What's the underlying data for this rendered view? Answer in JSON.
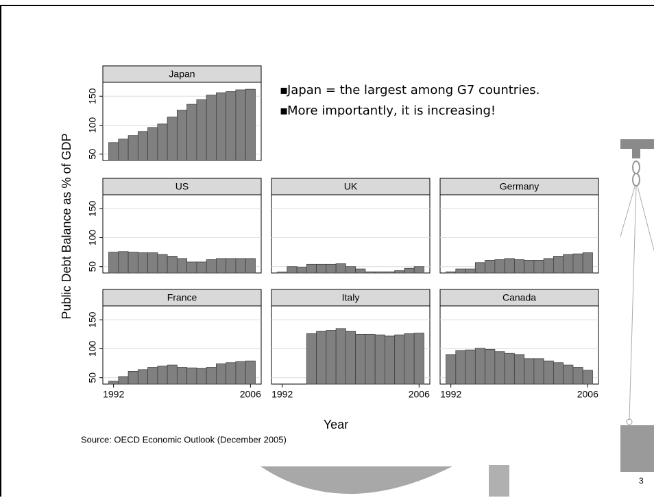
{
  "slide": {
    "bullets": [
      "Japan = the largest among G7 countries.",
      "More importantly, it is increasing!"
    ],
    "ylabel": "Public Debt Balance as % of GDP",
    "xlabel": "Year",
    "source": "Source: OECD Economic Outlook (December 2005)",
    "page_number": "3"
  },
  "chart_data": [
    {
      "type": "bar",
      "title": "Japan",
      "color": "#808080",
      "x": [
        1992,
        1993,
        1994,
        1995,
        1996,
        1997,
        1998,
        1999,
        2000,
        2001,
        2002,
        2003,
        2004,
        2005,
        2006
      ],
      "values": [
        70,
        76,
        82,
        89,
        96,
        102,
        114,
        126,
        136,
        144,
        152,
        156,
        158,
        161,
        162
      ],
      "xlim": [
        1990.9,
        2007.1
      ],
      "ylim": [
        39,
        174
      ],
      "yticks": [
        50,
        100,
        150
      ],
      "grid": true
    },
    {
      "type": "bar",
      "title": "US",
      "color": "#808080",
      "x": [
        1992,
        1993,
        1994,
        1995,
        1996,
        1997,
        1998,
        1999,
        2000,
        2001,
        2002,
        2003,
        2004,
        2005,
        2006
      ],
      "values": [
        75,
        76,
        75,
        74,
        74,
        71,
        68,
        64,
        58,
        58,
        62,
        64,
        64,
        64,
        64
      ],
      "xlim": [
        1990.9,
        2007.1
      ],
      "ylim": [
        39,
        174
      ],
      "yticks": [
        50,
        100,
        150
      ],
      "grid": true
    },
    {
      "type": "bar",
      "title": "UK",
      "color": "#808080",
      "x": [
        1992,
        1993,
        1994,
        1995,
        1996,
        1997,
        1998,
        1999,
        2000,
        2001,
        2002,
        2003,
        2004,
        2005,
        2006
      ],
      "values": [
        40.6,
        50,
        49,
        54,
        54,
        54,
        55,
        50,
        46,
        41,
        41,
        41,
        43,
        47,
        50
      ],
      "xlim": [
        1990.9,
        2007.1
      ],
      "ylim": [
        39,
        174
      ],
      "yticks": [
        50,
        100,
        150
      ],
      "grid": true
    },
    {
      "type": "bar",
      "title": "Germany",
      "color": "#808080",
      "x": [
        1992,
        1993,
        1994,
        1995,
        1996,
        1997,
        1998,
        1999,
        2000,
        2001,
        2002,
        2003,
        2004,
        2005,
        2006
      ],
      "values": [
        41,
        46,
        46,
        57,
        61,
        62,
        64,
        62,
        61,
        61,
        64,
        68,
        71,
        72,
        74
      ],
      "xlim": [
        1990.9,
        2007.1
      ],
      "ylim": [
        39,
        174
      ],
      "yticks": [
        50,
        100,
        150
      ],
      "grid": true
    },
    {
      "type": "bar",
      "title": "France",
      "color": "#808080",
      "x": [
        1992,
        1993,
        1994,
        1995,
        1996,
        1997,
        1998,
        1999,
        2000,
        2001,
        2002,
        2003,
        2004,
        2005,
        2006
      ],
      "values": [
        44,
        52,
        61,
        64,
        68,
        70,
        72,
        68,
        67,
        66,
        68,
        74,
        76,
        78,
        79
      ],
      "xlim": [
        1990.9,
        2007.1
      ],
      "ylim": [
        39,
        174
      ],
      "yticks": [
        50,
        100,
        150
      ],
      "xticks": [
        1992,
        2006
      ],
      "grid": true
    },
    {
      "type": "bar",
      "title": "Italy",
      "color": "#808080",
      "x": [
        1992,
        1993,
        1994,
        1995,
        1996,
        1997,
        1998,
        1999,
        2000,
        2001,
        2002,
        2003,
        2004,
        2005,
        2006
      ],
      "values": [
        null,
        null,
        null,
        126,
        130,
        132,
        135,
        130,
        125,
        125,
        124,
        122,
        124,
        126,
        127
      ],
      "xlim": [
        1990.9,
        2007.1
      ],
      "ylim": [
        39,
        174
      ],
      "yticks": [
        50,
        100,
        150
      ],
      "xticks": [
        1992,
        2006
      ],
      "grid": true
    },
    {
      "type": "bar",
      "title": "Canada",
      "color": "#808080",
      "x": [
        1992,
        1993,
        1994,
        1995,
        1996,
        1997,
        1998,
        1999,
        2000,
        2001,
        2002,
        2003,
        2004,
        2005,
        2006
      ],
      "values": [
        90,
        97,
        98,
        101,
        99,
        95,
        92,
        90,
        83,
        83,
        79,
        76,
        72,
        68,
        63
      ],
      "xlim": [
        1990.9,
        2007.1
      ],
      "ylim": [
        39,
        174
      ],
      "yticks": [
        50,
        100,
        150
      ],
      "xticks": [
        1992,
        2006
      ],
      "grid": true
    }
  ]
}
